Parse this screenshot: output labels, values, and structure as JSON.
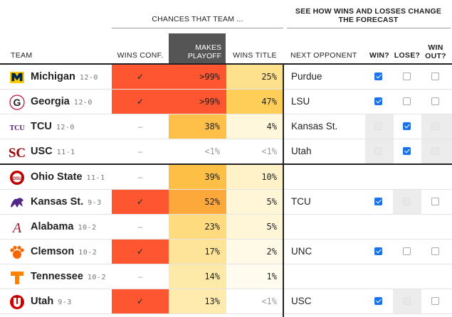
{
  "header": {
    "chances": "CHANCES THAT TEAM ...",
    "see_how": "SEE HOW WINS AND LOSSES CHANGE THE FORECAST",
    "team": "TEAM",
    "wins_conf": "WINS CONF.",
    "makes_playoff": "MAKES PLAYOFF",
    "wins_title": "WINS TITLE",
    "next_opponent": "NEXT OPPONENT",
    "win": "WIN?",
    "lose": "LOSE?",
    "win_out": "WIN OUT?"
  },
  "colors": {
    "conf_red": "#fd5630",
    "check_blue": "#1a73e8",
    "playoff_header": "#555555"
  },
  "rows": [
    {
      "team": "Michigan",
      "record": "12-0",
      "logo": "michigan-logo-icon",
      "wins_conf": "✓",
      "conf_color": "#fd5630",
      "makes_playoff": ">99%",
      "playoff_color": "#fd5630",
      "wins_title": "25%",
      "title_color": "#fee18c",
      "next_opponent": "Purdue",
      "win": "checked",
      "lose": "unchecked",
      "win_out": "unchecked"
    },
    {
      "team": "Georgia",
      "record": "12-0",
      "logo": "georgia-logo-icon",
      "wins_conf": "✓",
      "conf_color": "#fd5630",
      "makes_playoff": ">99%",
      "playoff_color": "#fd5630",
      "wins_title": "47%",
      "title_color": "#fece58",
      "next_opponent": "LSU",
      "win": "checked",
      "lose": "unchecked",
      "win_out": "unchecked"
    },
    {
      "team": "TCU",
      "record": "12-0",
      "logo": "tcu-logo-icon",
      "wins_conf": "–",
      "conf_color": "#ffffff",
      "makes_playoff": "38%",
      "playoff_color": "#fec048",
      "wins_title": "4%",
      "title_color": "#fff7dc",
      "next_opponent": "Kansas St.",
      "win": "disabled",
      "lose": "checked",
      "win_out": "disabled"
    },
    {
      "team": "USC",
      "record": "11-1",
      "logo": "usc-logo-icon",
      "wins_conf": "–",
      "conf_color": "#ffffff",
      "makes_playoff": "<1%",
      "playoff_color": "#ffffff",
      "wins_title": "<1%",
      "title_color": "#ffffff",
      "next_opponent": "Utah",
      "win": "disabled",
      "lose": "checked",
      "win_out": "disabled"
    },
    {
      "team": "Ohio State",
      "record": "11-1",
      "logo": "ohio-state-logo-icon",
      "wins_conf": "–",
      "conf_color": "#ffffff",
      "makes_playoff": "39%",
      "playoff_color": "#febf46",
      "wins_title": "10%",
      "title_color": "#fff2c8",
      "next_opponent": "",
      "win": "none",
      "lose": "none",
      "win_out": "none"
    },
    {
      "team": "Kansas St.",
      "record": "9-3",
      "logo": "kansas-state-logo-icon",
      "wins_conf": "✓",
      "conf_color": "#fd5630",
      "makes_playoff": "52%",
      "playoff_color": "#fca83a",
      "wins_title": "5%",
      "title_color": "#fff6d8",
      "next_opponent": "TCU",
      "win": "checked",
      "lose": "disabled",
      "win_out": "unchecked"
    },
    {
      "team": "Alabama",
      "record": "10-2",
      "logo": "alabama-logo-icon",
      "wins_conf": "–",
      "conf_color": "#ffffff",
      "makes_playoff": "23%",
      "playoff_color": "#fedb7e",
      "wins_title": "5%",
      "title_color": "#fff6d8",
      "next_opponent": "",
      "win": "none",
      "lose": "none",
      "win_out": "none"
    },
    {
      "team": "Clemson",
      "record": "10-2",
      "logo": "clemson-logo-icon",
      "wins_conf": "✓",
      "conf_color": "#fd5630",
      "makes_playoff": "17%",
      "playoff_color": "#fee498",
      "wins_title": "2%",
      "title_color": "#fffae8",
      "next_opponent": "UNC",
      "win": "checked",
      "lose": "unchecked",
      "win_out": "unchecked"
    },
    {
      "team": "Tennessee",
      "record": "10-2",
      "logo": "tennessee-logo-icon",
      "wins_conf": "–",
      "conf_color": "#ffffff",
      "makes_playoff": "14%",
      "playoff_color": "#feeaa8",
      "wins_title": "1%",
      "title_color": "#fffbee",
      "next_opponent": "",
      "win": "none",
      "lose": "none",
      "win_out": "none"
    },
    {
      "team": "Utah",
      "record": "9-3",
      "logo": "utah-logo-icon",
      "wins_conf": "✓",
      "conf_color": "#fd5630",
      "makes_playoff": "13%",
      "playoff_color": "#feebad",
      "wins_title": "<1%",
      "title_color": "#ffffff",
      "next_opponent": "USC",
      "win": "checked",
      "lose": "disabled",
      "win_out": "unchecked"
    }
  ]
}
